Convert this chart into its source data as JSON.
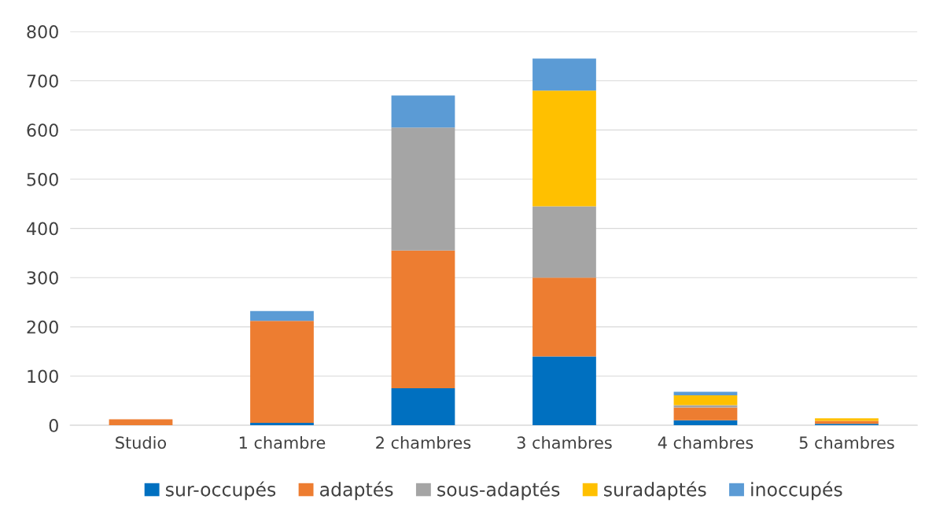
{
  "chart_data": {
    "type": "bar",
    "stacked": true,
    "categories": [
      "Studio",
      "1 chambre",
      "2 chambres",
      "3 chambres",
      "4 chambres",
      "5 chambres"
    ],
    "series": [
      {
        "name": "sur-occupés",
        "color": "#0070c0",
        "values": [
          0,
          5,
          75,
          140,
          10,
          3
        ]
      },
      {
        "name": "adaptés",
        "color": "#ed7d31",
        "values": [
          12,
          207,
          280,
          160,
          26,
          6
        ]
      },
      {
        "name": "sous-adaptés",
        "color": "#a5a5a5",
        "values": [
          0,
          0,
          250,
          145,
          5,
          0
        ]
      },
      {
        "name": "suradaptés",
        "color": "#ffc000",
        "values": [
          0,
          0,
          0,
          235,
          20,
          5
        ]
      },
      {
        "name": "inoccupés",
        "color": "#5b9bd5",
        "values": [
          0,
          20,
          65,
          65,
          7,
          null
        ]
      }
    ],
    "ylim": [
      0,
      800
    ],
    "yticks": [
      0,
      100,
      200,
      300,
      400,
      500,
      600,
      700,
      800
    ],
    "grid": "y",
    "legend": "bottom"
  }
}
